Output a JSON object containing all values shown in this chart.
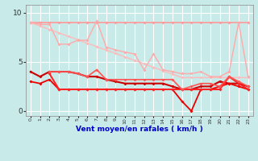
{
  "background_color": "#c8eae8",
  "grid_color": "#ffffff",
  "xlabel": "Vent moyen/en rafales ( km/h )",
  "xlim": [
    -0.5,
    23.5
  ],
  "ylim": [
    -0.5,
    10.8
  ],
  "yticks": [
    0,
    5,
    10
  ],
  "xticks": [
    0,
    1,
    2,
    3,
    4,
    5,
    6,
    7,
    8,
    9,
    10,
    11,
    12,
    13,
    14,
    15,
    16,
    17,
    18,
    19,
    20,
    21,
    22,
    23
  ],
  "series": [
    {
      "color": "#ff9999",
      "lw": 1.2,
      "y": [
        9.0,
        9.0,
        9.0,
        9.0,
        9.0,
        9.0,
        9.0,
        9.0,
        9.0,
        9.0,
        9.0,
        9.0,
        9.0,
        9.0,
        9.0,
        9.0,
        9.0,
        9.0,
        9.0,
        9.0,
        9.0,
        9.0,
        9.0,
        9.0
      ]
    },
    {
      "color": "#ffbbbb",
      "lw": 1.0,
      "y": [
        9.0,
        8.65,
        8.3,
        7.95,
        7.6,
        7.25,
        6.9,
        6.55,
        6.2,
        5.85,
        5.5,
        5.15,
        4.8,
        4.45,
        4.1,
        3.75,
        3.4,
        3.4,
        3.4,
        3.4,
        3.4,
        3.4,
        3.4,
        3.4
      ]
    },
    {
      "color": "#ffaaaa",
      "lw": 1.0,
      "y": [
        9.0,
        8.8,
        8.8,
        6.8,
        6.8,
        7.2,
        7.2,
        9.2,
        6.5,
        6.2,
        6.0,
        5.8,
        4.2,
        5.8,
        4.2,
        4.0,
        3.8,
        3.8,
        4.0,
        3.5,
        3.5,
        4.0,
        9.0,
        3.5
      ]
    },
    {
      "color": "#cc0000",
      "lw": 1.5,
      "y": [
        4.0,
        3.5,
        4.0,
        4.0,
        4.0,
        3.8,
        3.5,
        3.5,
        3.2,
        3.0,
        2.8,
        2.8,
        2.8,
        2.8,
        2.8,
        2.5,
        2.2,
        2.2,
        2.5,
        2.5,
        3.0,
        2.8,
        2.8,
        2.5
      ]
    },
    {
      "color": "#ee0000",
      "lw": 1.3,
      "y": [
        3.0,
        2.8,
        3.2,
        2.2,
        2.2,
        2.2,
        2.2,
        2.2,
        2.2,
        2.2,
        2.2,
        2.2,
        2.2,
        2.2,
        2.2,
        2.2,
        1.0,
        0.0,
        2.2,
        2.2,
        2.5,
        2.8,
        2.5,
        2.2
      ]
    },
    {
      "color": "#ff2222",
      "lw": 1.5,
      "y": [
        null,
        null,
        3.8,
        2.2,
        2.2,
        2.2,
        2.2,
        2.2,
        2.2,
        2.2,
        2.2,
        2.2,
        2.2,
        2.2,
        2.2,
        2.2,
        2.2,
        2.2,
        2.2,
        2.2,
        2.2,
        3.5,
        2.8,
        2.2
      ]
    },
    {
      "color": "#ff5555",
      "lw": 1.2,
      "y": [
        null,
        null,
        4.0,
        4.0,
        4.0,
        3.8,
        3.5,
        4.2,
        3.2,
        3.2,
        3.2,
        3.2,
        3.2,
        3.2,
        3.2,
        3.2,
        2.2,
        2.5,
        2.8,
        2.8,
        2.5,
        3.5,
        3.0,
        2.5
      ]
    }
  ]
}
